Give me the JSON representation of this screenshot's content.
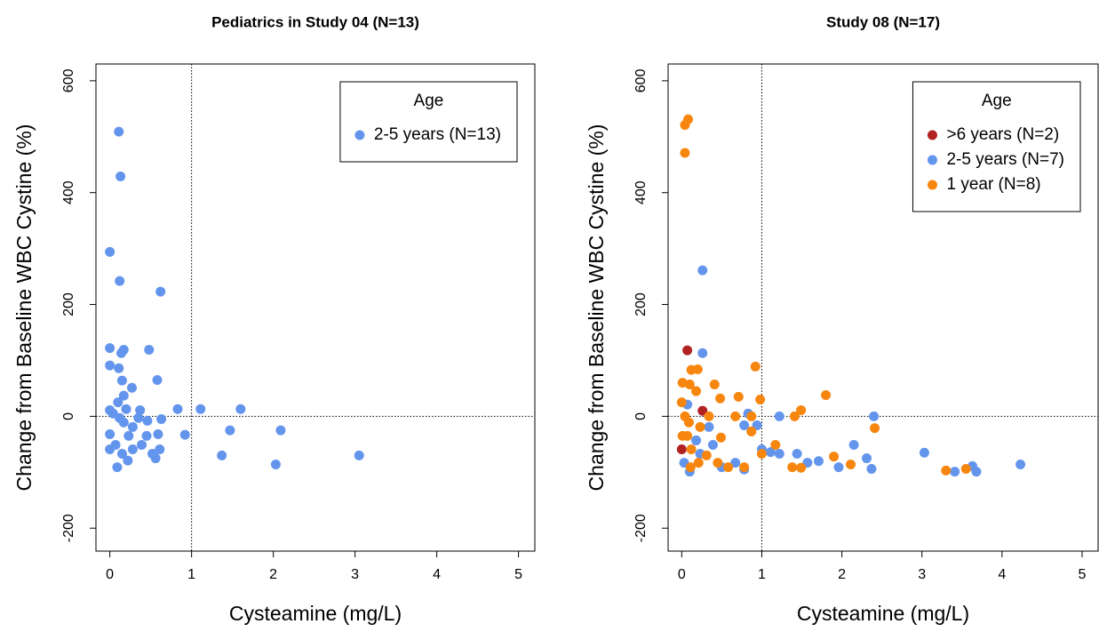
{
  "chart_data": [
    {
      "type": "scatter",
      "title": "Pediatrics in Study 04 (N=13)",
      "x_label": "Cysteamine (mg/L)",
      "y_label": "Change from Baseline WBC Cystine (%)",
      "xlim": [
        -0.17,
        5.2
      ],
      "ylim": [
        -241,
        630
      ],
      "xticks": [
        0,
        1,
        2,
        3,
        4,
        5
      ],
      "yticks": [
        -200,
        0,
        200,
        400,
        600
      ],
      "vline": 1,
      "hline": 0,
      "legend_title": "Age",
      "legend_position": "top-right",
      "series": [
        {
          "name": "2-5 years (N=13)",
          "color": "#6495ed",
          "x": [
            0.11,
            0.13,
            0,
            0.12,
            0.62,
            0,
            0.17,
            0.48,
            0.14,
            0,
            0.11,
            0.58,
            0.15,
            0.27,
            0.17,
            0.1,
            0,
            0.37,
            1.11,
            0.83,
            1.6,
            0.63,
            0.46,
            0.92,
            1.47,
            2.09,
            1.37,
            2.03,
            3.05,
            0.09,
            0,
            0,
            0.23,
            0.39,
            0.52,
            0.22,
            0.12,
            0.28,
            0.59,
            0.35,
            0.2,
            0.07,
            0.45,
            0.15,
            0.28,
            0.61,
            0.56,
            0.04,
            0.17
          ],
          "values": [
            509,
            429,
            294,
            242,
            223,
            122,
            119,
            119,
            113,
            91,
            86,
            65,
            64,
            51,
            37,
            25,
            11,
            11,
            13,
            13,
            13,
            -5,
            -8,
            -33,
            -25,
            -25,
            -70,
            -86,
            -70,
            -91,
            -32,
            -59,
            -35,
            -51,
            -67,
            -79,
            -3,
            -19,
            -32,
            -3,
            13,
            -51,
            -35,
            -67,
            -59,
            -59,
            -75,
            5,
            -11
          ]
        }
      ]
    },
    {
      "type": "scatter",
      "title": "Study 08 (N=17)",
      "x_label": "Cysteamine (mg/L)",
      "y_label": "Change from Baseline WBC Cystine (%)",
      "xlim": [
        -0.17,
        5.2
      ],
      "ylim": [
        -241,
        630
      ],
      "xticks": [
        0,
        1,
        2,
        3,
        4,
        5
      ],
      "yticks": [
        -200,
        0,
        200,
        400,
        600
      ],
      "vline": 1,
      "hline": 0,
      "legend_title": "Age",
      "legend_position": "top-right",
      "series": [
        {
          "name": ">6 years (N=2)",
          "color": "#b22222",
          "x": [
            0.07,
            0.26,
            0
          ],
          "values": [
            118,
            10,
            -59
          ]
        },
        {
          "name": "2-5 years (N=7)",
          "color": "#6495ed",
          "x": [
            0.26,
            0.26,
            2.4,
            3.03,
            4.23,
            2.15,
            2.31,
            2.37,
            3.41,
            3.68,
            3.63,
            1.22,
            0.83,
            0.78,
            0.94,
            1.11,
            1.22,
            1.57,
            1.71,
            1.96,
            1.44,
            0.07,
            0.34,
            0.5,
            0.78,
            0.03,
            0.23,
            0.39,
            0.67,
            1,
            0.18,
            0.1
          ],
          "values": [
            261,
            113,
            0,
            -65,
            -86,
            -51,
            -75,
            -94,
            -99,
            -99,
            -89,
            0,
            5,
            -16,
            -16,
            -64,
            -67,
            -83,
            -80,
            -91,
            -67,
            21,
            -19,
            -91,
            -95,
            -83,
            -67,
            -51,
            -83,
            -59,
            -43,
            -99
          ]
        },
        {
          "name": "1 year (N=8)",
          "color": "#f7860f",
          "x": [
            0.08,
            0.04,
            0.04,
            0.2,
            0.12,
            0.92,
            0.01,
            0.1,
            0.41,
            0.18,
            0,
            0.48,
            0.71,
            0.98,
            1.8,
            1.49,
            1.41,
            0.87,
            0.67,
            2.41,
            0.04,
            0.23,
            0.34,
            0.49,
            0.87,
            1.17,
            1,
            1.38,
            1.49,
            1.9,
            2.11,
            3.3,
            3.55,
            0.58,
            0.78,
            0.12,
            0.21,
            0.31,
            0.07,
            0.45,
            0.09,
            0.01,
            0.11
          ],
          "values": [
            531,
            521,
            471,
            84,
            83,
            89,
            60,
            57,
            57,
            45,
            25,
            32,
            35,
            30,
            38,
            11,
            0,
            0,
            0,
            -21,
            0,
            -19,
            0,
            -38,
            -27,
            -51,
            -67,
            -91,
            -92,
            -72,
            -86,
            -97,
            -94,
            -91,
            -91,
            -59,
            -83,
            -70,
            -35,
            -83,
            -11,
            -35,
            -91
          ]
        }
      ]
    }
  ]
}
